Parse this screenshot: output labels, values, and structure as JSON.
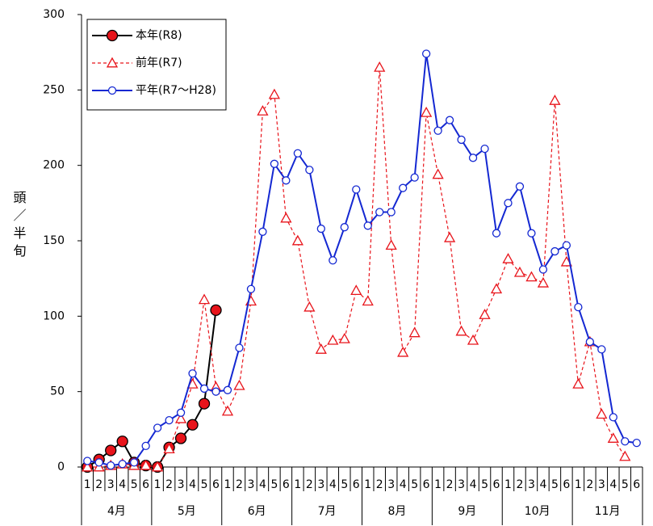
{
  "chart_data": {
    "type": "line",
    "y_label": "頭／半旬",
    "categories": [
      "1",
      "2",
      "3",
      "4",
      "5",
      "6",
      "1",
      "2",
      "3",
      "4",
      "5",
      "6",
      "1",
      "2",
      "3",
      "4",
      "5",
      "6",
      "1",
      "2",
      "3",
      "4",
      "5",
      "6",
      "1",
      "2",
      "3",
      "4",
      "5",
      "6",
      "1",
      "2",
      "3",
      "4",
      "5",
      "6",
      "1",
      "2",
      "3",
      "4",
      "5",
      "6",
      "1",
      "2",
      "3",
      "4",
      "5",
      "6"
    ],
    "groups": [
      "4月",
      "5月",
      "6月",
      "7月",
      "8月",
      "9月",
      "10月",
      "11月"
    ],
    "ylim": [
      0,
      300
    ],
    "yticks": [
      0,
      50,
      100,
      150,
      200,
      250,
      300
    ],
    "grid": false,
    "legend": "top-left",
    "series": [
      {
        "name": "本年(R8)",
        "color": "#000000",
        "marker": "circle",
        "marker_fill": "#e8141b",
        "marker_stroke": "#000000",
        "dashed": false,
        "values": [
          0,
          5,
          11,
          17,
          3,
          1,
          0,
          13,
          19,
          28,
          42,
          104,
          null,
          null,
          null,
          null,
          null,
          null,
          null,
          null,
          null,
          null,
          null,
          null,
          null,
          null,
          null,
          null,
          null,
          null,
          null,
          null,
          null,
          null,
          null,
          null,
          null,
          null,
          null,
          null,
          null,
          null,
          null,
          null,
          null,
          null,
          null,
          null
        ]
      },
      {
        "name": "前年(R7)",
        "color": "#e8141b",
        "marker": "triangle",
        "marker_fill": "#ffffff",
        "marker_stroke": "#e8141b",
        "dashed": true,
        "values": [
          0,
          0,
          1,
          2,
          1,
          1,
          0,
          12,
          32,
          55,
          111,
          53,
          37,
          54,
          110,
          236,
          247,
          165,
          150,
          106,
          78,
          84,
          85,
          117,
          110,
          265,
          147,
          76,
          89,
          235,
          194,
          152,
          90,
          84,
          101,
          118,
          138,
          129,
          126,
          122,
          243,
          136,
          55,
          83,
          35,
          19,
          7,
          null
        ]
      },
      {
        "name": "平年(R7〜H28)",
        "color": "#1428d2",
        "marker": "circle",
        "marker_fill": "#ffffff",
        "marker_stroke": "#1428d2",
        "dashed": false,
        "values": [
          4,
          3,
          1,
          2,
          3,
          14,
          26,
          31,
          36,
          62,
          52,
          50,
          51,
          79,
          118,
          156,
          201,
          190,
          208,
          197,
          158,
          137,
          159,
          184,
          160,
          169,
          169,
          185,
          192,
          274,
          223,
          230,
          217,
          205,
          211,
          155,
          175,
          186,
          155,
          131,
          143,
          147,
          106,
          83,
          78,
          33,
          17,
          16
        ]
      }
    ]
  }
}
